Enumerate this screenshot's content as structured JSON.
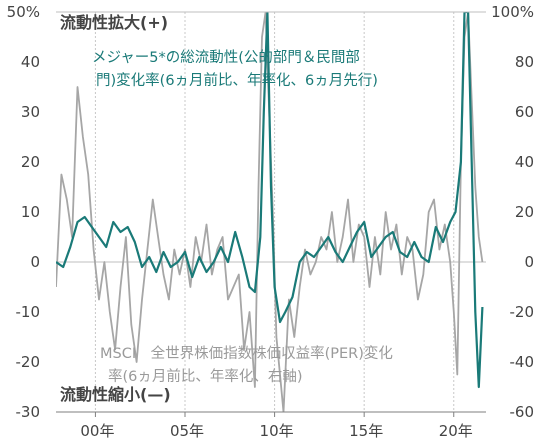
{
  "chart_data": {
    "type": "line",
    "title": "",
    "left_axis": {
      "ticks": [
        "50%",
        "40",
        "30",
        "20",
        "10",
        "0",
        "-10",
        "-20",
        "-30"
      ],
      "ylim": [
        -30,
        50
      ]
    },
    "right_axis": {
      "ticks": [
        "100%",
        "80",
        "60",
        "40",
        "20",
        "0",
        "-20",
        "-40",
        "-60"
      ],
      "ylim": [
        -60,
        100
      ]
    },
    "x_ticks": [
      "00年",
      "05年",
      "10年",
      "15年",
      "20年"
    ],
    "x_tick_years": [
      2000,
      2005,
      2010,
      2015,
      2020
    ],
    "xlim": [
      1997.8,
      2021.8
    ],
    "grid": "vertical dashed at each x tick",
    "annotations": {
      "top": "流動性拡大(+)",
      "bottom": "流動性縮小(—)",
      "teal_label_line1": "メジャー5*の総流動性(公的部門＆民間部",
      "teal_label_line2": "門)変化率(6ヵ月前比、年率化、6ヵ月先行)",
      "gray_label_line1": "MSCI　全世界株価指数株価収益率(PER)変化",
      "gray_label_line2": "率(6ヵ月前比、年率化、右軸)"
    },
    "series": [
      {
        "axis": "left",
        "color": "#1a7a78",
        "x": [
          1997.8,
          1998.2,
          1998.6,
          1999.0,
          1999.4,
          1999.8,
          2000.2,
          2000.6,
          2001.0,
          2001.4,
          2001.8,
          2002.2,
          2002.6,
          2003.0,
          2003.4,
          2003.8,
          2004.2,
          2004.6,
          2005.0,
          2005.4,
          2005.8,
          2006.2,
          2006.6,
          2007.0,
          2007.4,
          2007.8,
          2008.2,
          2008.6,
          2008.9,
          2009.2,
          2009.4,
          2009.6,
          2009.8,
          2010.0,
          2010.3,
          2010.6,
          2011.0,
          2011.4,
          2011.8,
          2012.2,
          2012.6,
          2013.0,
          2013.4,
          2013.8,
          2014.2,
          2014.6,
          2015.0,
          2015.4,
          2015.8,
          2016.2,
          2016.6,
          2017.0,
          2017.4,
          2017.8,
          2018.2,
          2018.6,
          2019.0,
          2019.4,
          2019.8,
          2020.1,
          2020.4,
          2020.6,
          2020.8,
          2021.0,
          2021.2,
          2021.4,
          2021.6
        ],
        "values": [
          0,
          -1,
          3,
          8,
          9,
          7,
          5,
          3,
          8,
          6,
          7,
          4,
          -1,
          1,
          -2,
          2,
          -1,
          0,
          2,
          -3,
          1,
          -2,
          0,
          3,
          0,
          6,
          1,
          -5,
          -6,
          5,
          30,
          50,
          15,
          -5,
          -12,
          -10,
          -7,
          0,
          2,
          1,
          3,
          5,
          2,
          0,
          3,
          6,
          8,
          1,
          3,
          5,
          6,
          2,
          1,
          4,
          1,
          0,
          7,
          4,
          8,
          10,
          20,
          50,
          50,
          20,
          -10,
          -25,
          -9
        ]
      },
      {
        "axis": "right",
        "color": "#a6a6a6",
        "x": [
          1997.8,
          1998.1,
          1998.4,
          1998.7,
          1999.0,
          1999.3,
          1999.6,
          1999.9,
          2000.2,
          2000.5,
          2000.8,
          2001.1,
          2001.4,
          2001.7,
          2002.0,
          2002.3,
          2002.6,
          2002.9,
          2003.2,
          2003.5,
          2003.8,
          2004.1,
          2004.4,
          2004.7,
          2005.0,
          2005.3,
          2005.6,
          2005.9,
          2006.2,
          2006.5,
          2006.8,
          2007.1,
          2007.4,
          2007.7,
          2008.0,
          2008.3,
          2008.6,
          2008.9,
          2009.1,
          2009.3,
          2009.5,
          2009.7,
          2009.9,
          2010.1,
          2010.3,
          2010.5,
          2010.8,
          2011.1,
          2011.4,
          2011.7,
          2012.0,
          2012.3,
          2012.6,
          2012.9,
          2013.2,
          2013.5,
          2013.8,
          2014.1,
          2014.4,
          2014.7,
          2015.0,
          2015.3,
          2015.6,
          2015.9,
          2016.2,
          2016.5,
          2016.8,
          2017.1,
          2017.4,
          2017.7,
          2018.0,
          2018.3,
          2018.6,
          2018.9,
          2019.2,
          2019.5,
          2019.8,
          2020.0,
          2020.2,
          2020.4,
          2020.6,
          2020.8,
          2021.0,
          2021.2,
          2021.4,
          2021.6
        ],
        "values": [
          -10,
          35,
          25,
          10,
          70,
          50,
          35,
          5,
          -15,
          0,
          -20,
          -35,
          -10,
          10,
          -25,
          -40,
          -15,
          5,
          25,
          10,
          -5,
          -15,
          5,
          -5,
          5,
          -10,
          10,
          0,
          15,
          -5,
          5,
          10,
          -15,
          -10,
          -5,
          -35,
          -20,
          -50,
          30,
          90,
          100,
          60,
          20,
          -30,
          -45,
          -60,
          -15,
          -30,
          -10,
          5,
          -5,
          0,
          10,
          5,
          20,
          0,
          10,
          25,
          0,
          15,
          10,
          -10,
          10,
          -5,
          20,
          5,
          15,
          -5,
          10,
          5,
          -15,
          -5,
          20,
          25,
          5,
          15,
          0,
          -20,
          -45,
          40,
          90,
          100,
          65,
          30,
          10,
          0
        ]
      }
    ]
  }
}
